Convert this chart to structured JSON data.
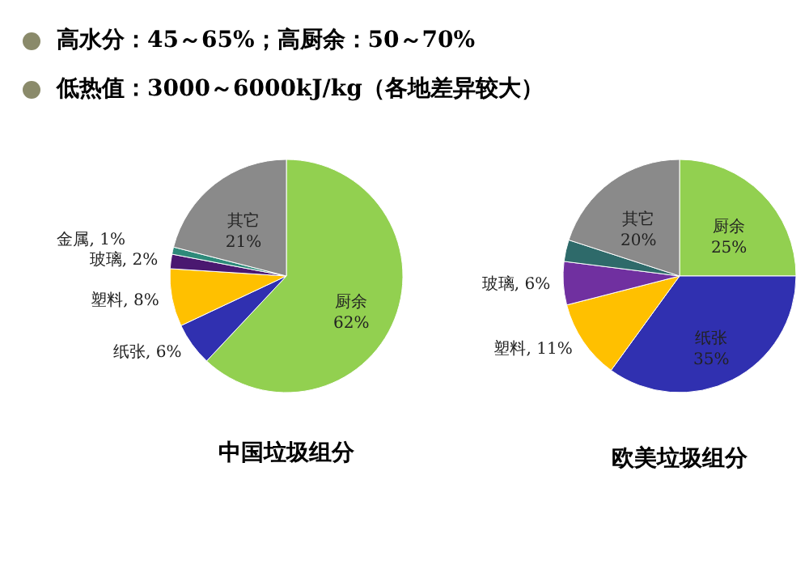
{
  "chart_data": [
    {
      "type": "pie",
      "title": "中国垃圾组分",
      "annotations": [
        "高水分：45～65%；高厨余：50～70%",
        "低热值：3000～6000kJ/kg（各地差异较大）"
      ],
      "categories": [
        "厨余",
        "纸张",
        "塑料",
        "玻璃",
        "金属",
        "其它"
      ],
      "values": [
        62,
        6,
        8,
        2,
        1,
        21
      ],
      "colors": [
        "#92d050",
        "#3030b0",
        "#ffc000",
        "#4a1870",
        "#2e8a7a",
        "#8a8a8a"
      ],
      "value_labels": [
        "62%",
        "6%",
        "8%",
        "2%",
        "1%",
        "21%"
      ]
    },
    {
      "type": "pie",
      "title": "欧美垃圾组分",
      "categories": [
        "厨余",
        "纸张",
        "塑料",
        "玻璃",
        null,
        "其它"
      ],
      "values": [
        25,
        35,
        11,
        6,
        3,
        20
      ],
      "colors": [
        "#92d050",
        "#3030b0",
        "#ffc000",
        "#7030a0",
        "#2e6a6a",
        "#8a8a8a"
      ],
      "value_labels": [
        "25%",
        "35%",
        "11%",
        "6%",
        null,
        "20%"
      ]
    }
  ]
}
